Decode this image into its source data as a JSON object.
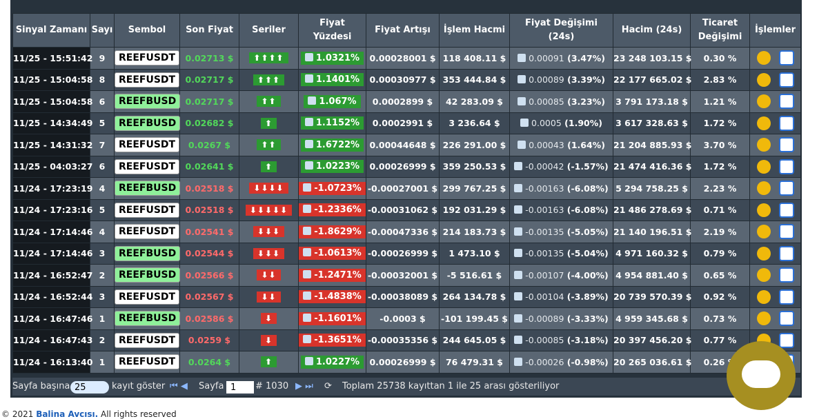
{
  "table": {
    "headers": [
      "Sinyal Zamanı",
      "Sayı",
      "Sembol",
      "Son Fiyat",
      "Seriler",
      "Fiyat Yüzdesi",
      "Fiyat Artışı",
      "İşlem Hacmi",
      "Fiyat Değişimi (24s)",
      "Hacim (24s)",
      "Ticaret Değişimi",
      "İşlemler"
    ],
    "rows": [
      [
        "11/25 - 15:51:42",
        "9",
        "REEFUSDT",
        "0.02713 $",
        "⬆⬆⬆⬆",
        "1.0321%",
        "0.00028001 $",
        "118 408.11 $",
        "0.00091",
        "(3.47%)",
        "23 248 103.15 $",
        "0.30 %"
      ],
      [
        "11/25 - 15:04:58",
        "8",
        "REEFUSDT",
        "0.02717 $",
        "⬆⬆⬆",
        "1.1401%",
        "0.00030977 $",
        "353 444.84 $",
        "0.00089",
        "(3.39%)",
        "22 177 665.02 $",
        "2.83 %"
      ],
      [
        "11/25 - 15:04:58",
        "6",
        "REEFBUSD",
        "0.02717 $",
        "⬆⬆",
        "1.067%",
        "0.0002899 $",
        "42 283.09 $",
        "0.00085",
        "(3.23%)",
        "3 791 173.18 $",
        "1.21 %"
      ],
      [
        "11/25 - 14:34:49",
        "5",
        "REEFBUSD",
        "0.02682 $",
        "⬆",
        "1.1152%",
        "0.0002991 $",
        "3 236.64 $",
        "0.0005",
        "(1.90%)",
        "3 617 328.63 $",
        "1.72 %"
      ],
      [
        "11/25 - 14:31:32",
        "7",
        "REEFUSDT",
        "0.0267 $",
        "⬆⬆",
        "1.6722%",
        "0.00044648 $",
        "226 291.00 $",
        "0.00043",
        "(1.64%)",
        "21 204 885.93 $",
        "3.70 %"
      ],
      [
        "11/25 - 04:03:27",
        "6",
        "REEFUSDT",
        "0.02641 $",
        "⬆",
        "1.0223%",
        "0.00026999 $",
        "359 250.53 $",
        "-0.00042",
        "(-1.57%)",
        "21 474 416.36 $",
        "1.72 %"
      ],
      [
        "11/24 - 17:23:19",
        "4",
        "REEFBUSD",
        "0.02518 $",
        "⬇⬇⬇⬇",
        "-1.0723%",
        "-0.00027001 $",
        "299 767.25 $",
        "-0.00163",
        "(-6.08%)",
        "5 294 758.25 $",
        "2.23 %"
      ],
      [
        "11/24 - 17:23:16",
        "5",
        "REEFUSDT",
        "0.02518 $",
        "⬇⬇⬇⬇⬇",
        "-1.2336%",
        "-0.00031062 $",
        "192 031.29 $",
        "-0.00163",
        "(-6.08%)",
        "21 486 278.69 $",
        "0.71 %"
      ],
      [
        "11/24 - 17:14:46",
        "4",
        "REEFUSDT",
        "0.02541 $",
        "⬇⬇⬇",
        "-1.8629%",
        "-0.00047336 $",
        "214 183.73 $",
        "-0.00135",
        "(-5.05%)",
        "21 140 196.51 $",
        "2.19 %"
      ],
      [
        "11/24 - 17:14:46",
        "3",
        "REEFBUSD",
        "0.02544 $",
        "⬇⬇⬇",
        "-1.0613%",
        "-0.00026999 $",
        "1 473.10 $",
        "-0.00135",
        "(-5.04%)",
        "4 971 160.32 $",
        "0.79 %"
      ],
      [
        "11/24 - 16:52:47",
        "2",
        "REEFBUSD",
        "0.02566 $",
        "⬇⬇",
        "-1.2471%",
        "-0.00032001 $",
        "-5 516.61 $",
        "-0.00107",
        "(-4.00%)",
        "4 954 881.40 $",
        "0.65 %"
      ],
      [
        "11/24 - 16:52:44",
        "3",
        "REEFUSDT",
        "0.02567 $",
        "⬇⬇",
        "-1.4838%",
        "-0.00038089 $",
        "264 134.78 $",
        "-0.00104",
        "(-3.89%)",
        "20 739 570.39 $",
        "0.92 %"
      ],
      [
        "11/24 - 16:47:46",
        "1",
        "REEFBUSD",
        "0.02586 $",
        "⬇",
        "-1.1601%",
        "-0.0003 $",
        "-101 199.45 $",
        "-0.00089",
        "(-3.33%)",
        "4 959 345.68 $",
        "0.73 %"
      ],
      [
        "11/24 - 16:47:43",
        "2",
        "REEFUSDT",
        "0.0259 $",
        "⬇",
        "-1.3651%",
        "-0.00035356 $",
        "244 645.05 $",
        "-0.00085",
        "(-3.18%)",
        "20 397 456.20 $",
        "0.77 %"
      ],
      [
        "11/24 - 16:13:40",
        "1",
        "REEFUSDT",
        "0.0264 $",
        "⬆",
        "1.0227%",
        "0.00026999 $",
        "76 479.31 $",
        "-0.00026",
        "(-0.98%)",
        "20 265 036.61 $",
        "0.26 %"
      ]
    ]
  },
  "footer": {
    "per_page_label": "Sayfa başına",
    "per_page": "25",
    "show_label": "kayıt göster",
    "page_label": "Sayfa",
    "page": "1",
    "page_count": "# 1030",
    "summary": "Toplam 25738 kayıttan 1 ile 25 arası gösteriliyor"
  },
  "copyright": {
    "prefix": "© 2021",
    "brand": "Balina Avcısı.",
    "suffix": "All rights reserved"
  }
}
